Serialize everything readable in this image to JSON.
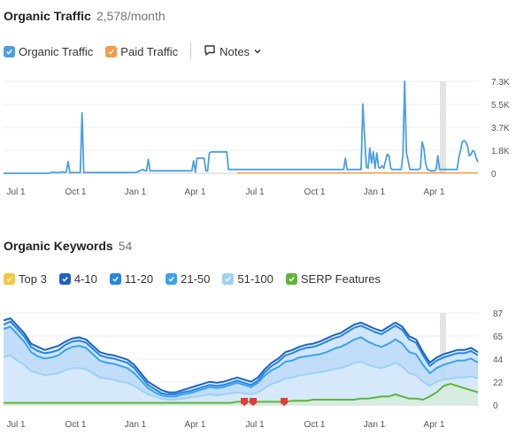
{
  "traffic": {
    "title": "Organic Traffic",
    "value": "2,578/month",
    "legend": [
      {
        "label": "Organic Traffic",
        "color": "#4a9fe0"
      },
      {
        "label": "Paid Traffic",
        "color": "#f59a48"
      }
    ],
    "notes_label": "Notes"
  },
  "keywords": {
    "title": "Organic Keywords",
    "value": "54",
    "legend": [
      {
        "label": "Top 3",
        "color": "#f8c63c"
      },
      {
        "label": "4-10",
        "color": "#1c63c4"
      },
      {
        "label": "11-20",
        "color": "#2584e4"
      },
      {
        "label": "21-50",
        "color": "#3aa2ee"
      },
      {
        "label": "51-100",
        "color": "#9fd0f6"
      },
      {
        "label": "SERP Features",
        "color": "#5fb53a"
      }
    ]
  },
  "chart_data": [
    {
      "type": "line",
      "title": "Organic Traffic",
      "x_ticks": [
        "Jul 1",
        "Oct 1",
        "Jan 1",
        "Apr 1",
        "Jul 1",
        "Oct 1",
        "Jan 1",
        "Apr 1"
      ],
      "y_ticks": [
        "7.3K",
        "5.5K",
        "3.7K",
        "1.8K",
        "0"
      ],
      "ylim": [
        0,
        7300
      ],
      "series": [
        {
          "name": "Organic Traffic",
          "color": "#4a9fe0",
          "values": [
            0,
            0,
            0,
            0,
            0,
            0,
            0,
            0,
            0,
            0,
            0,
            0,
            0,
            0,
            0,
            0,
            0,
            0,
            0,
            0,
            0,
            0,
            0,
            0,
            0,
            0,
            0,
            50,
            100,
            80,
            60,
            60,
            60,
            100,
            120,
            80,
            100,
            950,
            50,
            60,
            60,
            60,
            60,
            60,
            60,
            4800,
            60,
            60,
            60,
            60,
            60,
            60,
            60,
            60,
            60,
            60,
            60,
            60,
            60,
            60,
            60,
            60,
            60,
            60,
            60,
            60,
            60,
            60,
            60,
            60,
            60,
            60,
            60,
            60,
            60,
            60,
            100,
            120,
            200,
            250,
            300,
            220,
            200,
            1100,
            200,
            200,
            200,
            200,
            200,
            200,
            200,
            200,
            200,
            200,
            200,
            200,
            200,
            200,
            200,
            200,
            200,
            200,
            200,
            200,
            200,
            200,
            200,
            200,
            200,
            1000,
            100,
            1200,
            1200,
            1200,
            1200,
            1200,
            200,
            200,
            1600,
            1700,
            1700,
            1700,
            1700,
            1700,
            1700,
            1700,
            1700,
            1700,
            1700,
            300,
            300,
            300,
            300,
            300,
            300,
            300,
            300,
            300,
            300,
            300,
            300,
            300,
            300,
            300,
            300,
            300,
            300,
            300,
            300,
            300,
            300,
            300,
            300,
            300,
            300,
            300,
            300,
            300,
            300,
            300,
            300,
            300,
            300,
            300,
            300,
            300,
            300,
            300,
            300,
            300,
            300,
            300,
            300,
            300,
            300,
            300,
            300,
            300,
            300,
            300,
            300,
            300,
            300,
            300,
            300,
            300,
            300,
            300,
            300,
            300,
            300,
            300,
            300,
            300,
            300,
            300,
            1200,
            300,
            300,
            300,
            300,
            300,
            300,
            300,
            300,
            300,
            5500,
            3000,
            500,
            400,
            2000,
            800,
            1700,
            400,
            1600,
            500,
            400,
            600,
            400,
            1000,
            1500,
            1400,
            400,
            300,
            300,
            300,
            300,
            300,
            300,
            1500,
            7300,
            1600,
            1000,
            300,
            300,
            300,
            300,
            300,
            300,
            400,
            2500,
            2000,
            800,
            300,
            250,
            200,
            200,
            200,
            300,
            1400,
            300,
            300,
            300,
            300,
            300,
            300,
            300,
            300,
            300,
            300,
            300,
            1200,
            1800,
            2500,
            2600,
            2500,
            2200,
            1400,
            1500,
            1800,
            1700,
            1200,
            900
          ]
        },
        {
          "name": "Paid Traffic",
          "color": "#f59a48",
          "values": [
            0,
            0
          ]
        }
      ]
    },
    {
      "type": "area",
      "title": "Organic Keywords",
      "x_ticks": [
        "Jul 1",
        "Oct 1",
        "Jan 1",
        "Apr 1",
        "Jul 1",
        "Oct 1",
        "Jan 1",
        "Apr 1"
      ],
      "y_ticks": [
        "87",
        "65",
        "44",
        "22",
        "0"
      ],
      "ylim": [
        0,
        87
      ],
      "series": [
        {
          "name": "4-10",
          "color": "#1c63c4",
          "values": [
            80,
            82,
            75,
            68,
            58,
            55,
            52,
            54,
            56,
            60,
            63,
            64,
            62,
            56,
            50,
            48,
            47,
            45,
            43,
            38,
            30,
            22,
            18,
            14,
            12,
            12,
            14,
            16,
            18,
            20,
            22,
            21,
            22,
            24,
            26,
            24,
            22,
            26,
            34,
            40,
            44,
            50,
            52,
            55,
            57,
            58,
            60,
            63,
            66,
            68,
            72,
            76,
            78,
            75,
            72,
            70,
            74,
            78,
            74,
            65,
            62,
            50,
            40,
            45,
            48,
            50,
            52,
            52,
            54,
            50
          ]
        },
        {
          "name": "11-20",
          "color": "#2584e4",
          "values": [
            76,
            79,
            72,
            65,
            55,
            51,
            49,
            50,
            52,
            57,
            60,
            61,
            59,
            53,
            47,
            45,
            44,
            42,
            40,
            35,
            27,
            19,
            15,
            11,
            10,
            10,
            12,
            13,
            15,
            17,
            19,
            18,
            19,
            21,
            23,
            21,
            19,
            23,
            31,
            37,
            41,
            47,
            49,
            52,
            54,
            55,
            57,
            60,
            63,
            65,
            69,
            73,
            75,
            72,
            69,
            67,
            71,
            75,
            71,
            62,
            59,
            47,
            37,
            42,
            45,
            47,
            49,
            49,
            51,
            47
          ]
        },
        {
          "name": "21-50",
          "color": "#3aa2ee",
          "values": [
            72,
            74,
            67,
            60,
            50,
            46,
            44,
            45,
            47,
            52,
            55,
            56,
            54,
            48,
            42,
            40,
            39,
            37,
            35,
            30,
            23,
            16,
            12,
            9,
            8,
            8,
            10,
            11,
            13,
            15,
            17,
            16,
            17,
            19,
            21,
            19,
            17,
            21,
            28,
            33,
            36,
            41,
            42,
            45,
            46,
            47,
            48,
            50,
            53,
            55,
            58,
            62,
            64,
            60,
            57,
            55,
            58,
            62,
            58,
            50,
            48,
            38,
            30,
            35,
            38,
            40,
            42,
            42,
            44,
            40
          ]
        },
        {
          "name": "51-100",
          "color": "#9fd0f6",
          "values": [
            45,
            47,
            42,
            38,
            32,
            30,
            28,
            29,
            30,
            33,
            35,
            35,
            34,
            30,
            26,
            25,
            24,
            22,
            21,
            18,
            14,
            10,
            8,
            6,
            5,
            5,
            6,
            7,
            8,
            9,
            10,
            9,
            10,
            11,
            12,
            11,
            10,
            12,
            16,
            20,
            22,
            25,
            26,
            28,
            29,
            30,
            31,
            32,
            34,
            35,
            37,
            40,
            41,
            38,
            36,
            35,
            37,
            40,
            36,
            30,
            28,
            22,
            18,
            22,
            24,
            25,
            26,
            26,
            27,
            25
          ]
        },
        {
          "name": "SERP Features",
          "color": "#5fb53a",
          "values": [
            2,
            2,
            2,
            2,
            2,
            2,
            2,
            2,
            2,
            2,
            2,
            2,
            2,
            2,
            2,
            2,
            2,
            2,
            2,
            2,
            2,
            2,
            2,
            2,
            2,
            2,
            2,
            2,
            2,
            2,
            2,
            2,
            2,
            2,
            3,
            3,
            3,
            3,
            3,
            3,
            3,
            3,
            4,
            4,
            4,
            5,
            5,
            5,
            5,
            5,
            5,
            5,
            6,
            6,
            7,
            8,
            8,
            10,
            8,
            6,
            6,
            5,
            8,
            12,
            18,
            20,
            18,
            16,
            14,
            12
          ]
        }
      ],
      "markers": {
        "color": "#e23b3b",
        "count": 3
      }
    }
  ]
}
